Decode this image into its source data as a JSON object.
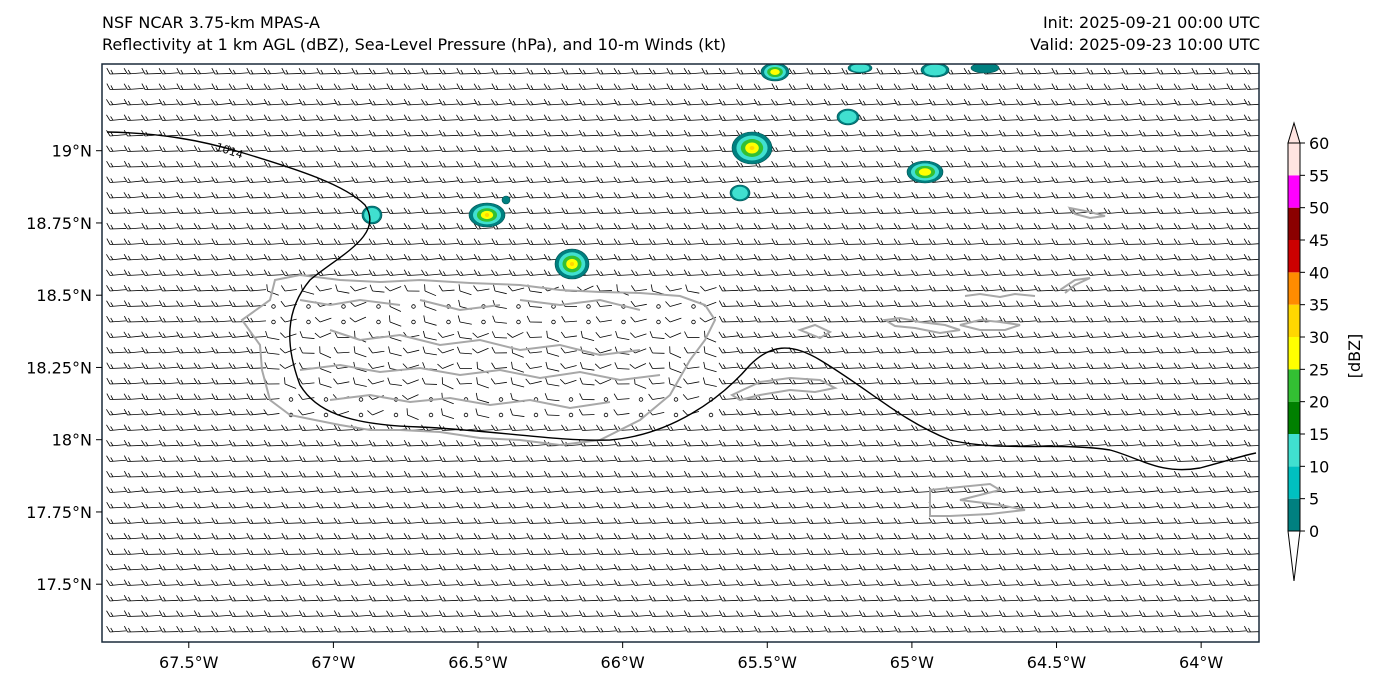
{
  "title": {
    "line1": "NSF NCAR 3.75-km MPAS-A",
    "line2": "Reflectivity at 1 km AGL (dBZ), Sea-Level Pressure (hPa), and 10-m Winds (kt)",
    "init": "Init: 2025-09-21 00:00 UTC",
    "valid": "Valid: 2025-09-23 10:00 UTC"
  },
  "map": {
    "lon_range": [
      -67.8,
      -63.8
    ],
    "lat_range": [
      17.3,
      19.3
    ],
    "lon_ticks": [
      {
        "value": -67.5,
        "label": "67.5°W"
      },
      {
        "value": -67.0,
        "label": "67°W"
      },
      {
        "value": -66.5,
        "label": "66.5°W"
      },
      {
        "value": -66.0,
        "label": "66°W"
      },
      {
        "value": -65.5,
        "label": "65.5°W"
      },
      {
        "value": -65.0,
        "label": "65°W"
      },
      {
        "value": -64.5,
        "label": "64.5°W"
      },
      {
        "value": -64.0,
        "label": "64°W"
      }
    ],
    "lat_ticks": [
      {
        "value": 19.0,
        "label": "19°N"
      },
      {
        "value": 18.75,
        "label": "18.75°N"
      },
      {
        "value": 18.5,
        "label": "18.5°N"
      },
      {
        "value": 18.25,
        "label": "18.25°N"
      },
      {
        "value": 18.0,
        "label": "18°N"
      },
      {
        "value": 17.75,
        "label": "17.75°N"
      },
      {
        "value": 17.5,
        "label": "17.5°N"
      }
    ],
    "isobar_label": "1014",
    "colors": {
      "coast": "#a8a8a8",
      "isobar": "#000000",
      "barb": "#000000",
      "border": "#1a2a3a"
    }
  },
  "colorbar": {
    "label": "[dBZ]",
    "levels": [
      0,
      5,
      10,
      15,
      20,
      25,
      30,
      35,
      40,
      45,
      50,
      55,
      60
    ],
    "colors": [
      "#008080",
      "#00c0c0",
      "#40e0d0",
      "#008000",
      "#33c033",
      "#ffff00",
      "#ffd700",
      "#ff8c00",
      "#cc0000",
      "#8b0000",
      "#ff00ff",
      "#ffe4e1"
    ]
  }
}
